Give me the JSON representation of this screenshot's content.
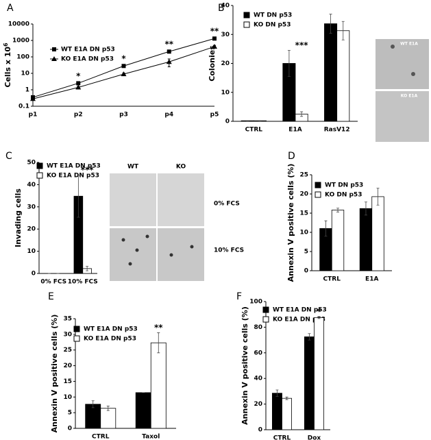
{
  "chart_data": [
    {
      "type": "line",
      "panel": "A",
      "y_label": "Cells x 10",
      "y_label_exponent": "6",
      "log_scale": true,
      "legend": "upper left",
      "categories": [
        "p1",
        "p2",
        "p3",
        "p4",
        "p5"
      ],
      "series": [
        {
          "name": "WT E1A DN p53",
          "color": "#000000",
          "marker": "square",
          "values": [
            0.35,
            2.5,
            28,
            210,
            1300
          ],
          "errors": [
            0.05,
            0.3,
            3,
            30,
            150
          ]
        },
        {
          "name": "KO E1A DN p53",
          "color": "#000000",
          "marker": "triangle",
          "values": [
            0.28,
            1.4,
            9,
            50,
            420
          ],
          "errors": [
            0.03,
            0.2,
            1.5,
            25,
            80
          ]
        }
      ],
      "ylim": [
        0.1,
        10000
      ],
      "yticks": [
        0.1,
        1,
        10,
        100,
        1000,
        10000
      ],
      "annotations": [
        null,
        "*",
        "*",
        "**",
        "**"
      ]
    },
    {
      "type": "bar",
      "panel": "B",
      "y_label": "Colonies",
      "legend": "upper left",
      "categories": [
        "CTRL",
        "E1A",
        "RasV12"
      ],
      "series": [
        {
          "name": "WT DN p53",
          "color": "#000000",
          "values": [
            0.2,
            20,
            33.7
          ],
          "errors": [
            0,
            4.5,
            3.3
          ]
        },
        {
          "name": "KO DN p53",
          "color": "#ffffff",
          "values": [
            0.2,
            2.5,
            31.3
          ],
          "errors": [
            0,
            0.8,
            3.2
          ]
        }
      ],
      "ylim": [
        0,
        40
      ],
      "yticks": [
        0,
        10,
        20,
        30,
        40
      ],
      "annotations": [
        null,
        "***",
        null
      ],
      "inset_labels": [
        "WT E1A",
        "KO E1A"
      ]
    },
    {
      "type": "bar",
      "panel": "C",
      "y_label": "Invading cells",
      "legend": "upper left",
      "categories": [
        "0% FCS",
        "10% FCS"
      ],
      "series": [
        {
          "name": "WT E1A DN p53",
          "color": "#000000",
          "values": [
            0,
            34.8
          ],
          "errors": [
            0,
            9.5
          ]
        },
        {
          "name": "KO E1A DN p53",
          "color": "#ffffff",
          "values": [
            0,
            2.2
          ],
          "errors": [
            0,
            1
          ]
        }
      ],
      "ylim": [
        0,
        50
      ],
      "yticks": [
        0,
        10,
        20,
        30,
        40,
        50
      ],
      "annotations": [
        null,
        "***"
      ],
      "inset_column_labels": [
        "WT",
        "KO"
      ],
      "inset_row_labels": [
        "0% FCS",
        "10% FCS"
      ]
    },
    {
      "type": "bar",
      "panel": "D",
      "y_label": "Annexin V positive cells (%)",
      "legend": "upper left",
      "categories": [
        "CTRL",
        "E1A"
      ],
      "series": [
        {
          "name": "WT DN p53",
          "color": "#000000",
          "values": [
            11,
            16.2
          ],
          "errors": [
            2,
            1.7
          ]
        },
        {
          "name": "KO DN p53",
          "color": "#ffffff",
          "values": [
            15.8,
            19.3
          ],
          "errors": [
            0.5,
            2.2
          ]
        }
      ],
      "ylim": [
        0,
        25
      ],
      "yticks": [
        0,
        5,
        10,
        15,
        20,
        25
      ],
      "annotations": [
        null,
        null
      ]
    },
    {
      "type": "bar",
      "panel": "E",
      "y_label": "Annexin V positive cells (%)",
      "legend": "upper left",
      "categories": [
        "CTRL",
        "Taxol"
      ],
      "series": [
        {
          "name": "WT E1A DN p53",
          "color": "#000000",
          "values": [
            7.7,
            11.4
          ],
          "errors": [
            1.1,
            0
          ]
        },
        {
          "name": "KO E1A DN p53",
          "color": "#ffffff",
          "values": [
            6.4,
            27.3
          ],
          "errors": [
            0.7,
            3.2
          ]
        }
      ],
      "ylim": [
        0,
        35
      ],
      "yticks": [
        0,
        5,
        10,
        15,
        20,
        25,
        30,
        35
      ],
      "annotations": [
        null,
        "**"
      ]
    },
    {
      "type": "bar",
      "panel": "F",
      "y_label": "Annexin V positive cells (%)",
      "legend": "upper left",
      "categories": [
        "CTRL",
        "Dox"
      ],
      "series": [
        {
          "name": "WT E1A DN p53",
          "color": "#000000",
          "values": [
            28.5,
            72.5
          ],
          "errors": [
            2.5,
            2.5
          ]
        },
        {
          "name": "KO E1A DN p53",
          "color": "#ffffff",
          "values": [
            24.5,
            87.5
          ],
          "errors": [
            1,
            0.8
          ]
        }
      ],
      "ylim": [
        0,
        100
      ],
      "yticks": [
        0,
        20,
        40,
        60,
        80,
        100
      ],
      "annotations": [
        null,
        "*"
      ]
    }
  ]
}
